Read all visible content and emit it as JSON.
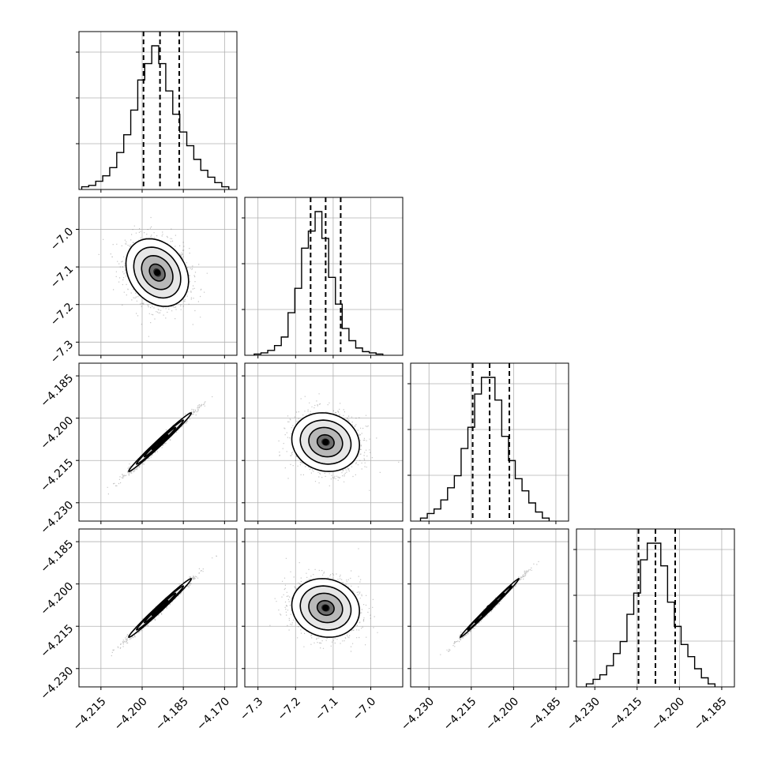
{
  "chart_data": {
    "type": "corner",
    "parameters": [
      {
        "index": 0,
        "range": [
          -4.223,
          -4.1655
        ],
        "ticks": [
          -4.215,
          -4.2,
          -4.185,
          -4.17
        ],
        "tick_labels": [
          "−4.215",
          "−4.200",
          "−4.185",
          "−4.170"
        ]
      },
      {
        "index": 1,
        "range": [
          -7.335,
          -6.915
        ],
        "ticks": [
          -7.3,
          -7.2,
          -7.1,
          -7.0
        ],
        "tick_labels": [
          "−7.3",
          "−7.2",
          "−7.1",
          "−7.0"
        ]
      },
      {
        "index": 2,
        "range": [
          -4.2365,
          -4.1805
        ],
        "ticks": [
          -4.23,
          -4.215,
          -4.2,
          -4.185
        ],
        "tick_labels": [
          "−4.230",
          "−4.215",
          "−4.200",
          "−4.185"
        ]
      },
      {
        "index": 3,
        "range": [
          -4.2365,
          -4.1805
        ],
        "ticks": [
          -4.23,
          -4.215,
          -4.2,
          -4.185
        ],
        "tick_labels": [
          "−4.230",
          "−4.215",
          "−4.200",
          "−4.185"
        ]
      }
    ],
    "histograms": [
      {
        "param": 0,
        "edges_start": -4.222,
        "bin_width": 0.00255,
        "counts": [
          2,
          3,
          6,
          10,
          16,
          27,
          40,
          58,
          80,
          92,
          105,
          92,
          72,
          55,
          42,
          32,
          22,
          14,
          9,
          5,
          2
        ],
        "quantiles": [
          -4.1995,
          -4.1935,
          -4.1865
        ]
      },
      {
        "param": 1,
        "edges_start": -7.31,
        "bin_width": 0.018,
        "counts": [
          1,
          2,
          4,
          8,
          15,
          35,
          55,
          88,
          102,
          118,
          96,
          64,
          42,
          22,
          12,
          6,
          3,
          2,
          1
        ],
        "quantiles": [
          -7.16,
          -7.12,
          -7.08
        ]
      },
      {
        "param": 2,
        "edges_start": -4.233,
        "bin_width": 0.0024,
        "counts": [
          2,
          5,
          8,
          14,
          22,
          30,
          48,
          62,
          84,
          95,
          95,
          80,
          56,
          40,
          28,
          20,
          12,
          6,
          2
        ],
        "quantiles": [
          -4.2145,
          -4.2085,
          -4.2015
        ]
      },
      {
        "param": 3,
        "edges_start": -4.233,
        "bin_width": 0.0024,
        "counts": [
          2,
          5,
          8,
          14,
          22,
          30,
          48,
          62,
          84,
          95,
          95,
          80,
          56,
          40,
          28,
          20,
          12,
          6,
          2
        ],
        "quantiles": [
          -4.2145,
          -4.2085,
          -4.2015
        ]
      }
    ],
    "pairs": [
      {
        "x": 0,
        "y": 1,
        "center": [
          -4.1945,
          -7.115
        ],
        "sigma": [
          0.0057,
          0.045
        ],
        "correlation": -0.25
      },
      {
        "x": 0,
        "y": 2,
        "center": [
          -4.1935,
          -4.2085
        ],
        "sigma": [
          0.0057,
          0.0052
        ],
        "correlation": 0.99
      },
      {
        "x": 1,
        "y": 2,
        "center": [
          -7.12,
          -4.2085
        ],
        "sigma": [
          0.045,
          0.0052
        ],
        "correlation": -0.1
      },
      {
        "x": 0,
        "y": 3,
        "center": [
          -4.1935,
          -4.2085
        ],
        "sigma": [
          0.0057,
          0.0052
        ],
        "correlation": 0.99
      },
      {
        "x": 1,
        "y": 3,
        "center": [
          -7.12,
          -4.2085
        ],
        "sigma": [
          0.045,
          0.0052
        ],
        "correlation": -0.1
      },
      {
        "x": 2,
        "y": 3,
        "center": [
          -4.2085,
          -4.2085
        ],
        "sigma": [
          0.0052,
          0.0052
        ],
        "correlation": 0.995
      }
    ],
    "contour_levels_sigma": [
      0.5,
      1.0,
      1.5,
      2.0
    ],
    "grid": true,
    "colors": {
      "line": "#000000",
      "scatter": "#555555",
      "grid": "#b0b0b0",
      "frame": "#000000"
    }
  }
}
